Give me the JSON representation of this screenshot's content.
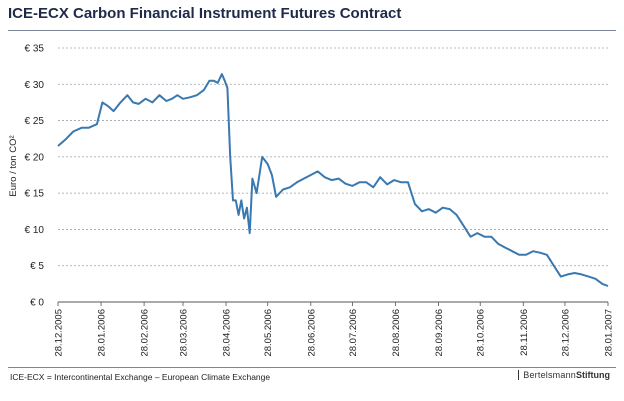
{
  "chart_data": {
    "type": "line",
    "title": "ICE-ECX Carbon Financial Instrument Futures Contract",
    "ylabel": "Euro / ton CO²",
    "xlabel": "",
    "ylim": [
      0,
      35
    ],
    "y_ticks": [
      "€ 0",
      "€ 5",
      "€ 10",
      "€ 15",
      "€ 20",
      "€ 25",
      "€ 30",
      "€ 35"
    ],
    "x_ticks": [
      "28.12.2005",
      "28.01.2006",
      "28.02.2006",
      "28.03.2006",
      "28.04.2006",
      "28.05.2006",
      "28.06.2006",
      "28.07.2006",
      "28.08.2006",
      "28.09.2006",
      "28.10.2006",
      "28.11.2006",
      "28.12.2006",
      "28.01.2007"
    ],
    "grid": "horizontal dashed",
    "line_color": "#3a78b0",
    "series": [
      {
        "x": [
          "2005-12-28",
          "2006-01-03",
          "2006-01-08",
          "2006-01-14",
          "2006-01-19",
          "2006-01-25",
          "2006-01-29",
          "2006-02-02",
          "2006-02-06",
          "2006-02-11",
          "2006-02-16",
          "2006-02-20",
          "2006-02-24",
          "2006-03-01",
          "2006-03-06",
          "2006-03-11",
          "2006-03-16",
          "2006-03-20",
          "2006-03-24",
          "2006-03-28",
          "2006-04-02",
          "2006-04-07",
          "2006-04-12",
          "2006-04-16",
          "2006-04-19",
          "2006-04-22",
          "2006-04-25",
          "2006-04-27",
          "2006-04-29",
          "2006-05-01",
          "2006-05-03",
          "2006-05-05",
          "2006-05-07",
          "2006-05-09",
          "2006-05-11",
          "2006-05-13",
          "2006-05-15",
          "2006-05-17",
          "2006-05-20",
          "2006-05-24",
          "2006-05-28",
          "2006-05-31",
          "2006-06-03",
          "2006-06-08",
          "2006-06-13",
          "2006-06-18",
          "2006-06-23",
          "2006-06-28",
          "2006-07-03",
          "2006-07-08",
          "2006-07-13",
          "2006-07-18",
          "2006-07-23",
          "2006-07-28",
          "2006-08-02",
          "2006-08-07",
          "2006-08-12",
          "2006-08-17",
          "2006-08-22",
          "2006-08-27",
          "2006-09-01",
          "2006-09-06",
          "2006-09-11",
          "2006-09-16",
          "2006-09-21",
          "2006-09-26",
          "2006-10-01",
          "2006-10-06",
          "2006-10-11",
          "2006-10-16",
          "2006-10-21",
          "2006-10-26",
          "2006-10-31",
          "2006-11-05",
          "2006-11-10",
          "2006-11-15",
          "2006-11-20",
          "2006-11-25",
          "2006-11-30",
          "2006-12-05",
          "2006-12-10",
          "2006-12-15",
          "2006-12-20",
          "2006-12-25",
          "2006-12-30",
          "2007-01-04",
          "2007-01-09",
          "2007-01-14",
          "2007-01-19",
          "2007-01-24",
          "2007-01-28"
        ],
        "y": [
          21.5,
          22.5,
          23.5,
          24.0,
          24.0,
          24.5,
          27.5,
          27.0,
          26.3,
          27.5,
          28.5,
          27.5,
          27.3,
          28.0,
          27.5,
          28.5,
          27.7,
          28.0,
          28.5,
          28.0,
          28.2,
          28.5,
          29.2,
          30.5,
          30.5,
          30.2,
          31.4,
          30.5,
          29.5,
          20.0,
          14.0,
          14.0,
          12.0,
          14.0,
          11.5,
          13.0,
          9.5,
          17.0,
          15.0,
          20.0,
          19.0,
          17.5,
          14.5,
          15.5,
          15.8,
          16.5,
          17.0,
          17.5,
          18.0,
          17.2,
          16.8,
          17.0,
          16.3,
          16.0,
          16.5,
          16.5,
          15.8,
          17.2,
          16.2,
          16.8,
          16.5,
          16.5,
          13.5,
          12.5,
          12.8,
          12.3,
          13.0,
          12.8,
          12.0,
          10.5,
          9.0,
          9.5,
          9.0,
          9.0,
          8.0,
          7.5,
          7.0,
          6.5,
          6.5,
          7.0,
          6.8,
          6.5,
          5.0,
          3.5,
          3.8,
          4.0,
          3.8,
          3.5,
          3.2,
          2.5,
          2.2
        ]
      }
    ]
  },
  "footer": {
    "note": "ICE-ECX = Intercontinental Exchange – European Climate Exchange",
    "logo_part1": "Bertelsmann",
    "logo_part2": "Stiftung"
  }
}
